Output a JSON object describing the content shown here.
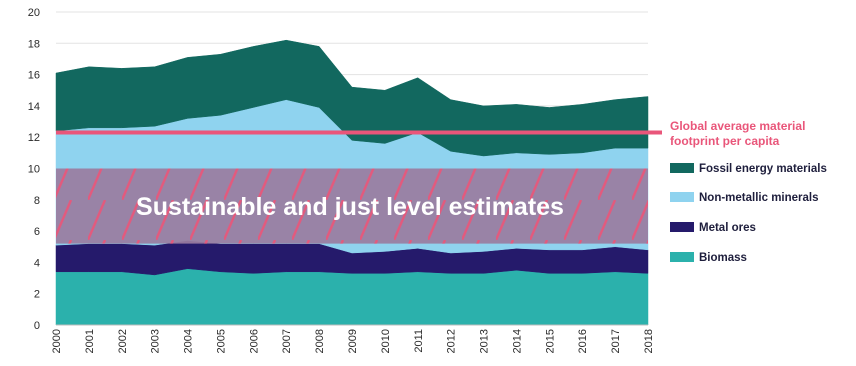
{
  "chart_data": {
    "type": "area",
    "x": [
      "2000",
      "2001",
      "2002",
      "2003",
      "2004",
      "2005",
      "2006",
      "2007",
      "2008",
      "2009",
      "2010",
      "2011",
      "2012",
      "2013",
      "2014",
      "2015",
      "2016",
      "2017",
      "2018"
    ],
    "ylim": [
      0,
      20
    ],
    "yticks": [
      "0",
      "2",
      "4",
      "6",
      "8",
      "10",
      "12",
      "14",
      "16",
      "18",
      "20"
    ],
    "stacked": true,
    "grid": true,
    "legend_position": "right",
    "series": [
      {
        "name": "Biomass",
        "color": "#2bb1ac",
        "values": [
          3.4,
          3.4,
          3.4,
          3.2,
          3.6,
          3.4,
          3.3,
          3.4,
          3.4,
          3.3,
          3.3,
          3.4,
          3.3,
          3.3,
          3.5,
          3.3,
          3.3,
          3.4,
          3.3
        ]
      },
      {
        "name": "Metal ores",
        "color": "#251a6b",
        "values": [
          1.7,
          1.8,
          1.8,
          1.9,
          1.8,
          1.8,
          1.9,
          1.8,
          1.8,
          1.3,
          1.4,
          1.5,
          1.3,
          1.4,
          1.4,
          1.5,
          1.5,
          1.6,
          1.5
        ]
      },
      {
        "name": "Non-metallic minerals",
        "color": "#8fd3ef",
        "values": [
          7.3,
          7.4,
          7.4,
          7.6,
          7.8,
          8.2,
          8.7,
          9.2,
          8.7,
          7.2,
          6.9,
          7.4,
          6.5,
          6.1,
          6.1,
          6.1,
          6.2,
          6.3,
          6.5
        ]
      },
      {
        "name": "Fossil energy materials",
        "color": "#12685f",
        "values": [
          3.7,
          3.9,
          3.8,
          3.8,
          3.9,
          3.9,
          3.9,
          3.8,
          3.9,
          3.4,
          3.4,
          3.5,
          3.3,
          3.2,
          3.1,
          3.0,
          3.1,
          3.1,
          3.3
        ]
      }
    ],
    "reference_line": {
      "value": 12.3,
      "label_lines": [
        "Global average material",
        "footprint per capita"
      ],
      "color": "#e9567a"
    },
    "band": {
      "from": 5.2,
      "to": 10.0,
      "label": "Sustainable and just level estimates",
      "color": "#9a7da0",
      "hatch_color": "#e9567a"
    }
  }
}
